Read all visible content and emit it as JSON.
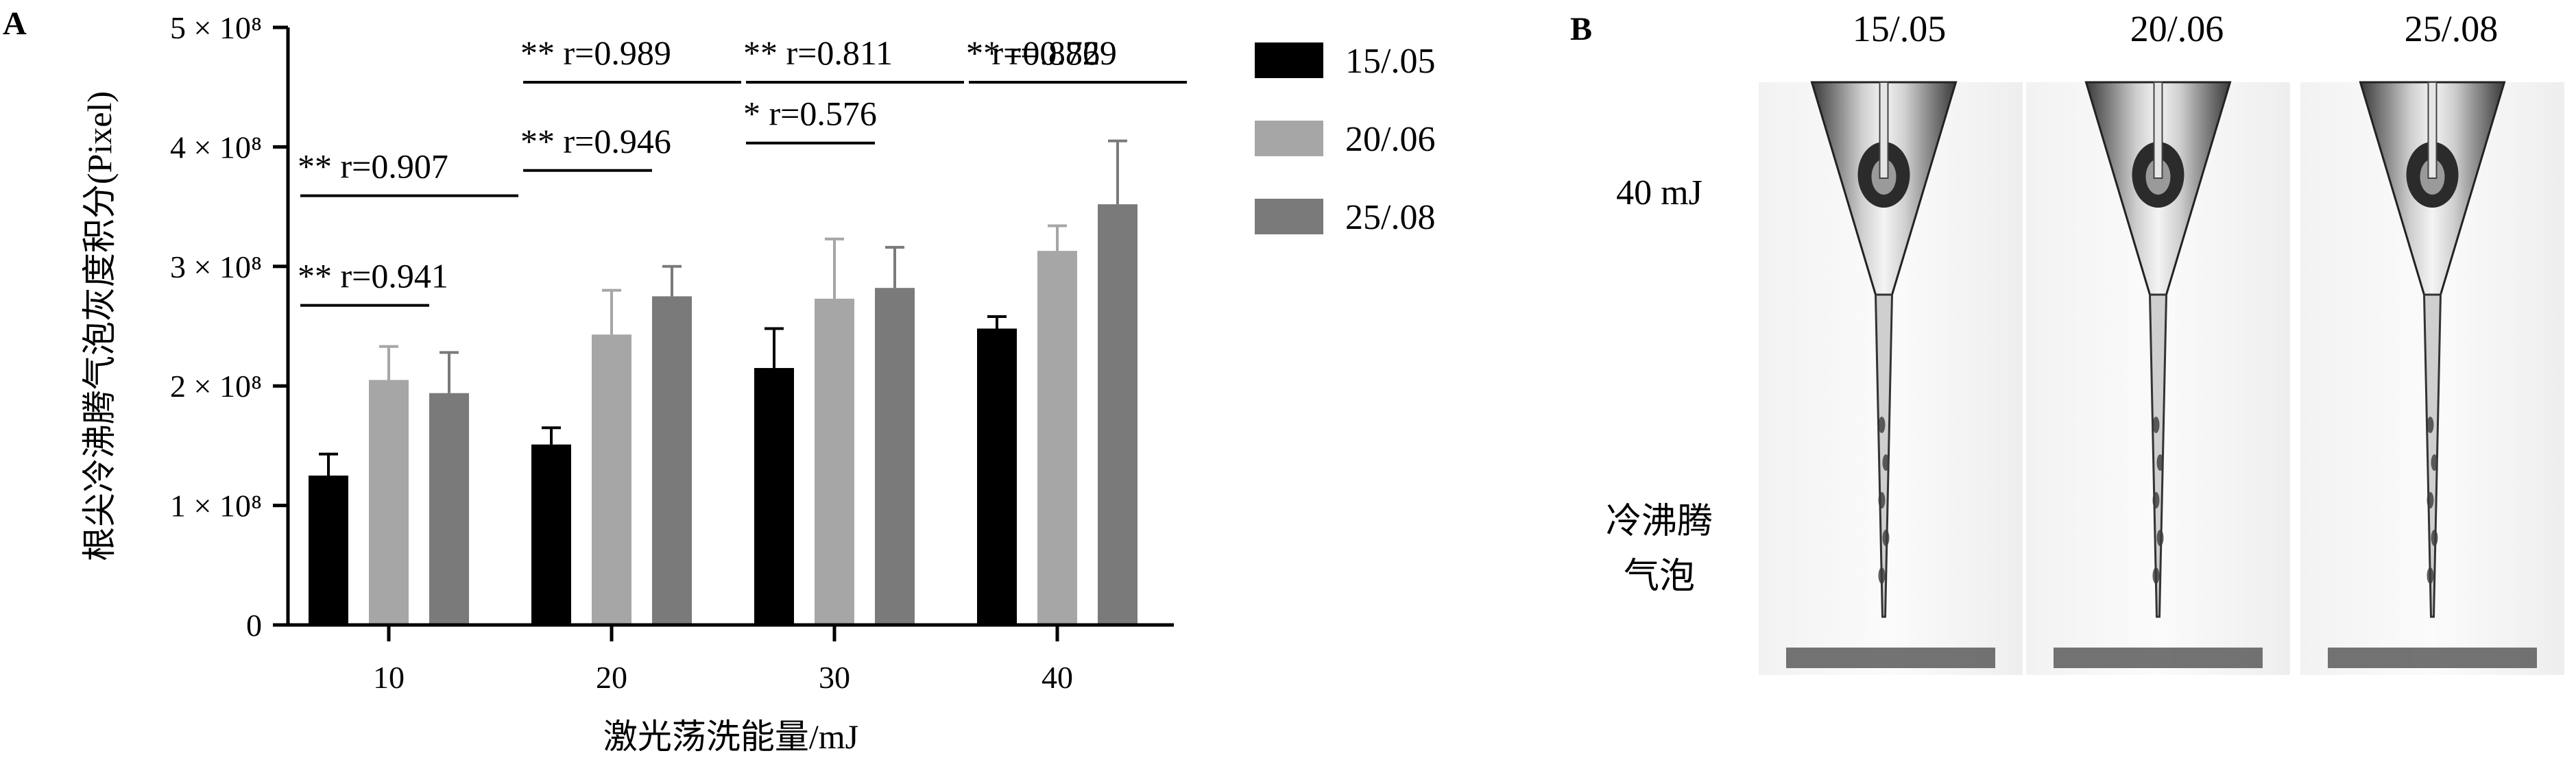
{
  "panels": {
    "a_label": "A",
    "b_label": "B"
  },
  "chart_data": {
    "type": "bar",
    "xlabel": "激光荡洗能量/mJ",
    "ylabel": "根尖冷沸腾气泡灰度积分(Pixel)",
    "ylim": [
      0,
      500000000
    ],
    "categories": [
      "10",
      "20",
      "30",
      "40"
    ],
    "y_ticks": [
      {
        "value": 0,
        "label": "0"
      },
      {
        "value": 100000000,
        "label": "1 × 10⁸"
      },
      {
        "value": 200000000,
        "label": "2 × 10⁸"
      },
      {
        "value": 300000000,
        "label": "3 × 10⁸"
      },
      {
        "value": 400000000,
        "label": "4 × 10⁸"
      },
      {
        "value": 500000000,
        "label": "5 × 10⁸"
      }
    ],
    "series": [
      {
        "name": "15/.05",
        "color": "#000000",
        "values": [
          125000000,
          151000000,
          215000000,
          248000000
        ],
        "errors": [
          18000000,
          14000000,
          33000000,
          10000000
        ]
      },
      {
        "name": "20/.06",
        "color": "#a6a6a6",
        "values": [
          205000000,
          243000000,
          273000000,
          313000000
        ],
        "errors": [
          28000000,
          37000000,
          50000000,
          21000000
        ]
      },
      {
        "name": "25/.08",
        "color": "#7a7a7a",
        "values": [
          194000000,
          275000000,
          282000000,
          352000000
        ],
        "errors": [
          34000000,
          25000000,
          34000000,
          53000000
        ]
      }
    ],
    "legend_position": "right",
    "grid": false,
    "annotations": [
      {
        "category": "10",
        "from": 0,
        "to": 1,
        "level": 1,
        "text": "** r=0.941"
      },
      {
        "category": "10",
        "from": 0,
        "to": 2,
        "level": 2,
        "text": "** r=0.907"
      },
      {
        "category": "20",
        "from": 0,
        "to": 1,
        "level": 1,
        "text": "** r=0.946"
      },
      {
        "category": "20",
        "from": 0,
        "to": 2,
        "level": 2,
        "text": "** r=0.989"
      },
      {
        "category": "30",
        "from": 0,
        "to": 1,
        "level": 1,
        "text": "* r=0.576"
      },
      {
        "category": "30",
        "from": 0,
        "to": 2,
        "level": 2,
        "text": "** r=0.811"
      },
      {
        "category": "40",
        "from": 0,
        "to": 1,
        "level": 1,
        "text": "* r=0.882"
      },
      {
        "category": "40",
        "from": 0,
        "to": 2,
        "level": 2,
        "text": "** r=0.769"
      }
    ]
  },
  "panel_b": {
    "column_labels": [
      "15/.05",
      "20/.06",
      "25/.08"
    ],
    "row_label_top": "40 mJ",
    "row_label_bottom_line1": "冷沸腾",
    "row_label_bottom_line2": "气泡"
  }
}
